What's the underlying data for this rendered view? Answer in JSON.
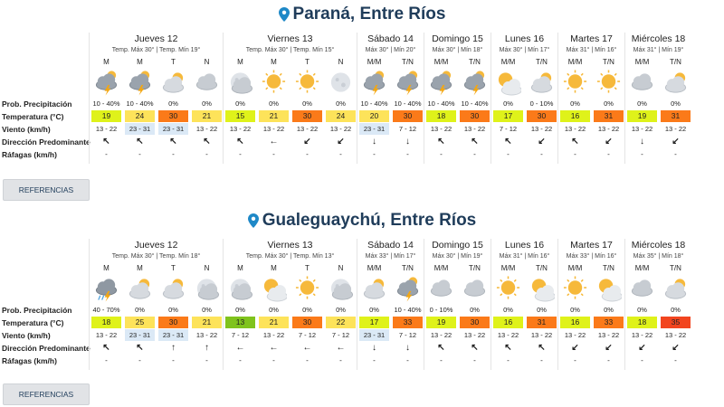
{
  "colors": {
    "temp_map": {
      "13": "#7fc31c",
      "15": "#dff21a",
      "16": "#dff21a",
      "17": "#dff21a",
      "18": "#dff21a",
      "19": "#dff21a",
      "20": "#fde35a",
      "21": "#fde35a",
      "22": "#fde35a",
      "24": "#fde35a",
      "25": "#fde35a",
      "30": "#fb7a19",
      "31": "#fb7a19",
      "33": "#fb7a19",
      "35": "#f2451f"
    },
    "wind_highlight": "#dbe9f6",
    "title": "#1f3c5a"
  },
  "labels": [
    "Prob. Precipitación",
    "Temperatura (°C)",
    "Viento (km/h)",
    "Dirección Predominante",
    "Ráfagas (km/h)"
  ],
  "references_label": "REFERENCIAS",
  "cities": [
    {
      "name": "Paraná, Entre Ríos",
      "days": [
        {
          "name": "Jueves 12",
          "temps": "Temp. Máx 30° | Temp. Mín 19°",
          "cols": [
            {
              "p": "M",
              "icon": "storm-cloud-icon",
              "prob": "10 - 40%",
              "temp": "19",
              "wind": "13 - 22",
              "hl": false,
              "dir": "↖",
              "gust": "-"
            },
            {
              "p": "M",
              "icon": "storm-cloud-icon",
              "prob": "10 - 40%",
              "temp": "24",
              "wind": "23 - 31",
              "hl": true,
              "dir": "↖",
              "gust": "-"
            },
            {
              "p": "T",
              "icon": "cloud-sun-icon",
              "prob": "0%",
              "temp": "30",
              "wind": "23 - 31",
              "hl": true,
              "dir": "↖",
              "gust": "-"
            },
            {
              "p": "N",
              "icon": "cloud-icon",
              "prob": "0%",
              "temp": "21",
              "wind": "13 - 22",
              "hl": false,
              "dir": "↖",
              "gust": "-"
            }
          ]
        },
        {
          "name": "Viernes 13",
          "temps": "Temp. Máx 30° | Temp. Mín 15°",
          "cols": [
            {
              "p": "M",
              "icon": "moon-cloud-icon",
              "prob": "0%",
              "temp": "15",
              "wind": "13 - 22",
              "hl": false,
              "dir": "↖",
              "gust": "-"
            },
            {
              "p": "M",
              "icon": "sun-icon",
              "prob": "0%",
              "temp": "21",
              "wind": "13 - 22",
              "hl": false,
              "dir": "←",
              "gust": "-"
            },
            {
              "p": "T",
              "icon": "sun-icon",
              "prob": "0%",
              "temp": "30",
              "wind": "13 - 22",
              "hl": false,
              "dir": "↙",
              "gust": "-"
            },
            {
              "p": "N",
              "icon": "moon-icon",
              "prob": "0%",
              "temp": "24",
              "wind": "13 - 22",
              "hl": false,
              "dir": "↙",
              "gust": "-"
            }
          ]
        },
        {
          "name": "Sábado 14",
          "temps": "Máx 30° | Mín 20°",
          "cols": [
            {
              "p": "M/M",
              "icon": "storm-cloud-icon",
              "prob": "10 - 40%",
              "temp": "20",
              "wind": "23 - 31",
              "hl": true,
              "dir": "↓",
              "gust": "-"
            },
            {
              "p": "T/N",
              "icon": "storm-cloud-icon",
              "prob": "10 - 40%",
              "temp": "30",
              "wind": "7 - 12",
              "hl": false,
              "dir": "↓",
              "gust": "-"
            }
          ]
        },
        {
          "name": "Domingo 15",
          "temps": "Máx 30° | Mín 18°",
          "cols": [
            {
              "p": "M/M",
              "icon": "storm-cloud-icon",
              "prob": "10 - 40%",
              "temp": "18",
              "wind": "13 - 22",
              "hl": false,
              "dir": "↖",
              "gust": "-"
            },
            {
              "p": "T/N",
              "icon": "storm-cloud-icon",
              "prob": "10 - 40%",
              "temp": "30",
              "wind": "13 - 22",
              "hl": false,
              "dir": "↖",
              "gust": "-"
            }
          ]
        },
        {
          "name": "Lunes 16",
          "temps": "Máx 30° | Mín 17°",
          "cols": [
            {
              "p": "M/M",
              "icon": "sun-cloud-icon",
              "prob": "0%",
              "temp": "17",
              "wind": "7 - 12",
              "hl": false,
              "dir": "↖",
              "gust": "-"
            },
            {
              "p": "T/N",
              "icon": "cloud-sun-icon",
              "prob": "0 - 10%",
              "temp": "30",
              "wind": "13 - 22",
              "hl": false,
              "dir": "↙",
              "gust": "-"
            }
          ]
        },
        {
          "name": "Martes 17",
          "temps": "Máx 31° | Mín 16°",
          "cols": [
            {
              "p": "M/M",
              "icon": "sun-icon",
              "prob": "0%",
              "temp": "16",
              "wind": "13 - 22",
              "hl": false,
              "dir": "↖",
              "gust": "-"
            },
            {
              "p": "T/N",
              "icon": "sun-icon",
              "prob": "0%",
              "temp": "31",
              "wind": "13 - 22",
              "hl": false,
              "dir": "↙",
              "gust": "-"
            }
          ]
        },
        {
          "name": "Miércoles 18",
          "temps": "Máx 31° | Mín 19°",
          "cols": [
            {
              "p": "M/M",
              "icon": "cloud-icon",
              "prob": "0%",
              "temp": "19",
              "wind": "13 - 22",
              "hl": false,
              "dir": "↓",
              "gust": "-"
            },
            {
              "p": "T/N",
              "icon": "cloud-sun-icon",
              "prob": "0%",
              "temp": "31",
              "wind": "13 - 22",
              "hl": false,
              "dir": "↙",
              "gust": "-"
            }
          ]
        }
      ]
    },
    {
      "name": "Gualeguaychú, Entre Ríos",
      "days": [
        {
          "name": "Jueves 12",
          "temps": "Temp. Máx 30° | Temp. Mín 18°",
          "cols": [
            {
              "p": "M",
              "icon": "storm-rain-icon",
              "prob": "40 - 70%",
              "temp": "18",
              "wind": "13 - 22",
              "hl": false,
              "dir": "↖",
              "gust": "-"
            },
            {
              "p": "M",
              "icon": "cloud-sun-icon",
              "prob": "0%",
              "temp": "25",
              "wind": "23 - 31",
              "hl": true,
              "dir": "↖",
              "gust": "-"
            },
            {
              "p": "T",
              "icon": "cloud-sun-icon",
              "prob": "0%",
              "temp": "30",
              "wind": "23 - 31",
              "hl": true,
              "dir": "↑",
              "gust": "-"
            },
            {
              "p": "N",
              "icon": "moon-cloud-icon",
              "prob": "0%",
              "temp": "21",
              "wind": "13 - 22",
              "hl": false,
              "dir": "↑",
              "gust": "-"
            }
          ]
        },
        {
          "name": "Viernes 13",
          "temps": "Temp. Máx 30° | Temp. Mín 13°",
          "cols": [
            {
              "p": "M",
              "icon": "moon-cloud-icon",
              "prob": "0%",
              "temp": "13",
              "wind": "7 - 12",
              "hl": false,
              "dir": "←",
              "gust": "-"
            },
            {
              "p": "M",
              "icon": "sun-cloud-icon",
              "prob": "0%",
              "temp": "21",
              "wind": "13 - 22",
              "hl": false,
              "dir": "←",
              "gust": "-"
            },
            {
              "p": "T",
              "icon": "sun-icon",
              "prob": "0%",
              "temp": "30",
              "wind": "7 - 12",
              "hl": false,
              "dir": "←",
              "gust": "-"
            },
            {
              "p": "N",
              "icon": "moon-cloud-icon",
              "prob": "0%",
              "temp": "22",
              "wind": "7 - 12",
              "hl": false,
              "dir": "←",
              "gust": "-"
            }
          ]
        },
        {
          "name": "Sábado 14",
          "temps": "Máx 33° | Mín 17°",
          "cols": [
            {
              "p": "M/M",
              "icon": "cloud-sun-icon",
              "prob": "0%",
              "temp": "17",
              "wind": "23 - 31",
              "hl": true,
              "dir": "↓",
              "gust": "-"
            },
            {
              "p": "T/N",
              "icon": "storm-cloud-icon",
              "prob": "10 - 40%",
              "temp": "33",
              "wind": "7 - 12",
              "hl": false,
              "dir": "↓",
              "gust": "-"
            }
          ]
        },
        {
          "name": "Domingo 15",
          "temps": "Máx 30° | Mín 19°",
          "cols": [
            {
              "p": "M/M",
              "icon": "cloud-icon",
              "prob": "0 - 10%",
              "temp": "19",
              "wind": "13 - 22",
              "hl": false,
              "dir": "↖",
              "gust": "-"
            },
            {
              "p": "T/N",
              "icon": "cloud-icon",
              "prob": "0%",
              "temp": "30",
              "wind": "13 - 22",
              "hl": false,
              "dir": "↖",
              "gust": "-"
            }
          ]
        },
        {
          "name": "Lunes 16",
          "temps": "Máx 31° | Mín 16°",
          "cols": [
            {
              "p": "M/M",
              "icon": "sun-icon",
              "prob": "0%",
              "temp": "16",
              "wind": "13 - 22",
              "hl": false,
              "dir": "↖",
              "gust": "-"
            },
            {
              "p": "T/N",
              "icon": "sun-cloud-icon",
              "prob": "0%",
              "temp": "31",
              "wind": "13 - 22",
              "hl": false,
              "dir": "↖",
              "gust": "-"
            }
          ]
        },
        {
          "name": "Martes 17",
          "temps": "Máx 33° | Mín 16°",
          "cols": [
            {
              "p": "M/M",
              "icon": "sun-icon",
              "prob": "0%",
              "temp": "16",
              "wind": "13 - 22",
              "hl": false,
              "dir": "↙",
              "gust": "-"
            },
            {
              "p": "T/N",
              "icon": "sun-cloud-icon",
              "prob": "0%",
              "temp": "33",
              "wind": "13 - 22",
              "hl": false,
              "dir": "↙",
              "gust": "-"
            }
          ]
        },
        {
          "name": "Miércoles 18",
          "temps": "Máx 35° | Mín 18°",
          "cols": [
            {
              "p": "M/M",
              "icon": "cloud-icon",
              "prob": "0%",
              "temp": "18",
              "wind": "13 - 22",
              "hl": false,
              "dir": "↙",
              "gust": "-"
            },
            {
              "p": "T/N",
              "icon": "cloud-sun-icon",
              "prob": "0%",
              "temp": "35",
              "wind": "13 - 22",
              "hl": false,
              "dir": "↙",
              "gust": "-"
            }
          ]
        }
      ]
    }
  ]
}
